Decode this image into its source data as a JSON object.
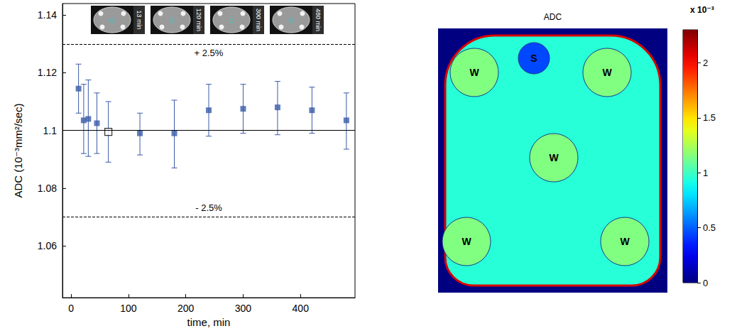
{
  "chart_data": [
    {
      "type": "scatter",
      "xlabel": "time, min",
      "ylabel": "ADC (10⁻³mm²/sec)",
      "xlim": [
        -15,
        495
      ],
      "xticks": [
        0,
        100,
        200,
        300,
        400
      ],
      "ylim": [
        1.042,
        1.144
      ],
      "yticks": [
        1.06,
        1.08,
        1.1,
        1.12,
        1.14
      ],
      "grid": false,
      "series": [
        {
          "color": "#3a5ba8",
          "marker": "square",
          "x": [
            13,
            22,
            30,
            45,
            120,
            180,
            240,
            300,
            360,
            420,
            480
          ],
          "values": [
            1.1145,
            1.1035,
            1.104,
            1.1025,
            1.099,
            1.099,
            1.107,
            1.1075,
            1.108,
            1.107,
            1.1035
          ],
          "error_low": [
            1.106,
            1.092,
            1.091,
            1.092,
            1.0915,
            1.087,
            1.098,
            1.099,
            1.0985,
            1.099,
            1.0935
          ],
          "error_high": [
            1.123,
            1.116,
            1.1175,
            1.113,
            1.106,
            1.1105,
            1.116,
            1.116,
            1.117,
            1.115,
            1.113
          ]
        },
        {
          "color": "#3a5ba8",
          "marker": "open_square",
          "x": [
            65
          ],
          "values": [
            1.0995
          ],
          "error_low": [
            1.089
          ],
          "error_high": [
            1.11
          ]
        }
      ],
      "reference_lines": [
        {
          "y": 1.1,
          "line_style": "solid"
        },
        {
          "y": 1.133,
          "label": "+ 2.5%",
          "line_style": "dashed"
        },
        {
          "y": 1.067,
          "label": "- 2.5%",
          "line_style": "dashed"
        }
      ],
      "thumbnails": [
        "13 min",
        "120 min",
        "300 min",
        "480 min"
      ]
    },
    {
      "type": "image",
      "title": "ADC",
      "colorbar": {
        "range": [
          0,
          2.3
        ],
        "ticks": [
          0,
          0.5,
          1,
          1.5,
          2
        ],
        "label": "x 10⁻³"
      },
      "background_value": 0,
      "phantom_value": 0.95,
      "rim_value": 2.1,
      "regions": [
        {
          "label": "S",
          "value": 0.45
        },
        {
          "label": "W",
          "value": 1.15
        },
        {
          "label": "W",
          "value": 1.15
        },
        {
          "label": "W",
          "value": 1.15
        },
        {
          "label": "W",
          "value": 1.15
        },
        {
          "label": "W",
          "value": 1.15
        }
      ]
    }
  ]
}
